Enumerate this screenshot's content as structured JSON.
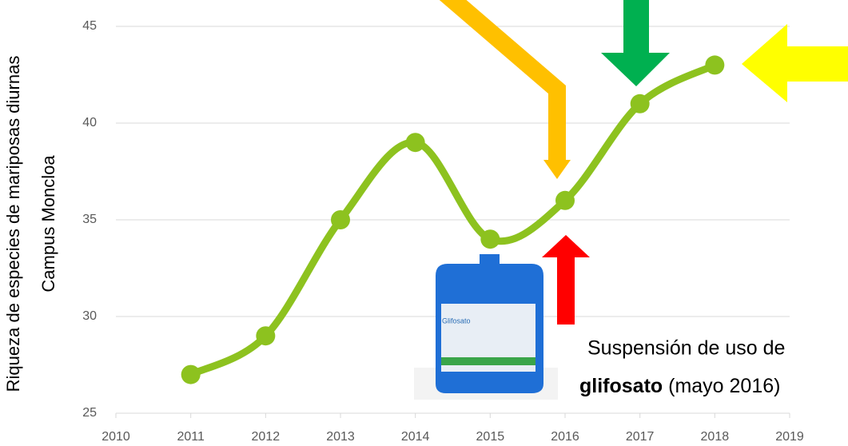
{
  "chart_data": {
    "type": "line",
    "y_label_lines": [
      "Riqueza de especies de mariposas diurnas",
      "Campus Moncloa"
    ],
    "x": [
      2011,
      2012,
      2013,
      2014,
      2015,
      2016,
      2017,
      2018
    ],
    "series": [
      {
        "color": "#8dc21f",
        "values": [
          27,
          29,
          35,
          39,
          34,
          36,
          41,
          43
        ]
      }
    ],
    "xlim": [
      2010,
      2019
    ],
    "xticks": [
      2010,
      2011,
      2012,
      2013,
      2014,
      2015,
      2016,
      2017,
      2018,
      2019
    ],
    "ylim": [
      25,
      45
    ],
    "yticks": [
      25,
      30,
      35,
      40,
      45
    ],
    "grid": true,
    "annotation": {
      "line1": "Suspensión de uso de",
      "bold": "glifosato",
      "rest": " (mayo 2016)"
    },
    "product_label": "Glifosato"
  }
}
